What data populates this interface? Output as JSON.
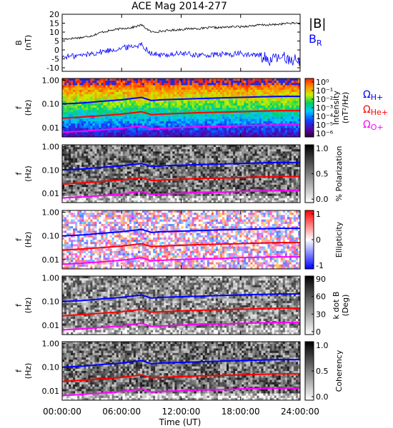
{
  "title": "ACE Mag 2014-277",
  "colors": {
    "h_plus": "#0000ff",
    "he_plus": "#ff0000",
    "o_plus": "#ff00ff",
    "btotal": "#000000",
    "br": "#0000ff"
  },
  "time_axis": {
    "label": "Time (UT)",
    "ticks": [
      "00:00:00",
      "06:00:00",
      "12:00:00",
      "18:00:00",
      "24:00:00"
    ],
    "range_hours": [
      0,
      24
    ]
  },
  "legend": {
    "h_plus": "ΩH+",
    "he_plus": "ΩHe+",
    "o_plus": "ΩO+"
  },
  "chart_data": [
    {
      "type": "line",
      "panel": "field",
      "ylabel": "B",
      "yunit": "(nT)",
      "ylim": [
        -12,
        20
      ],
      "yticks": [
        "20",
        "15",
        "10",
        "5",
        "0",
        "-5",
        "-10"
      ],
      "ytick_values": [
        20,
        15,
        10,
        5,
        0,
        -5,
        -10
      ],
      "x_hours": [
        0,
        1,
        2,
        3,
        4,
        5,
        6,
        7,
        8,
        9,
        10,
        11,
        12,
        13,
        14,
        15,
        16,
        17,
        18,
        19,
        20,
        21,
        22,
        23,
        24
      ],
      "series": [
        {
          "name": "|B|",
          "color_key": "btotal",
          "values": [
            6,
            6.5,
            7,
            8,
            10,
            11,
            12,
            12.5,
            14,
            10,
            10.5,
            11,
            11.5,
            12,
            12,
            12.5,
            12.5,
            13,
            13,
            13.5,
            14,
            14,
            14.5,
            15,
            15
          ]
        },
        {
          "name": "BR",
          "color_key": "br",
          "values": [
            -4,
            -3.5,
            -3,
            -2,
            -1,
            0,
            1,
            2,
            3,
            -2,
            -3,
            -2.5,
            -2,
            -2.5,
            -3,
            -3,
            -2.5,
            -2.5,
            -2,
            -3,
            -3,
            -6,
            -4,
            -5,
            -6
          ]
        }
      ]
    },
    {
      "type": "heatmap",
      "panel": "intensity",
      "colorbar_label": "Intensity",
      "colorbar_unit": "(nT²/Hz)",
      "colorbar_ticks": [
        "10⁰",
        "10⁻¹",
        "10⁻²",
        "10⁻³",
        "10⁻⁴",
        "10⁻⁵",
        "10⁻⁶"
      ],
      "colorbar_tick_exp": [
        0,
        -1,
        -2,
        -3,
        -4,
        -5,
        -6
      ]
    },
    {
      "type": "heatmap",
      "panel": "polarization",
      "colorbar_label": "% Polarization",
      "colorbar_ticks": [
        "1.0",
        "0.5",
        "0.0"
      ],
      "colorbar_tick_values": [
        1.0,
        0.5,
        0.0
      ]
    },
    {
      "type": "heatmap",
      "panel": "ellipticity",
      "colorbar_label": "Ellipticity",
      "colorbar_ticks": [
        "1",
        "0",
        "-1"
      ],
      "colorbar_tick_values": [
        1,
        0,
        -1
      ]
    },
    {
      "type": "heatmap",
      "panel": "kdotb",
      "colorbar_label": "k dot B",
      "colorbar_unit": "(Deg)",
      "colorbar_ticks": [
        "90",
        "60",
        "30",
        "0"
      ],
      "colorbar_tick_values": [
        90,
        60,
        30,
        0
      ]
    },
    {
      "type": "heatmap",
      "panel": "coherency",
      "colorbar_label": "Coherency",
      "colorbar_ticks": [
        "1.0",
        "0.5",
        "0.0"
      ],
      "colorbar_tick_values": [
        1.0,
        0.5,
        0.0
      ]
    }
  ],
  "spectrogram_axis": {
    "ylabel": "f",
    "yunit": "(Hz)",
    "yticks": [
      "1.00",
      "0.10",
      "0.01"
    ],
    "ytick_values": [
      1.0,
      0.1,
      0.01
    ],
    "ylim": [
      0.004,
      1.2
    ]
  },
  "gyrofrequency_lines": {
    "x_hours": [
      0,
      2,
      4,
      6,
      8,
      9,
      10,
      12,
      14,
      16,
      18,
      20,
      22,
      24
    ],
    "h_plus": [
      0.1,
      0.11,
      0.13,
      0.15,
      0.19,
      0.14,
      0.15,
      0.16,
      0.17,
      0.18,
      0.19,
      0.2,
      0.21,
      0.21
    ],
    "he_plus": [
      0.025,
      0.028,
      0.032,
      0.037,
      0.047,
      0.035,
      0.037,
      0.04,
      0.043,
      0.045,
      0.047,
      0.05,
      0.052,
      0.052
    ],
    "o_plus": [
      0.0063,
      0.007,
      0.008,
      0.0093,
      0.012,
      0.0088,
      0.0093,
      0.01,
      0.011,
      0.011,
      0.012,
      0.0125,
      0.013,
      0.013
    ]
  }
}
